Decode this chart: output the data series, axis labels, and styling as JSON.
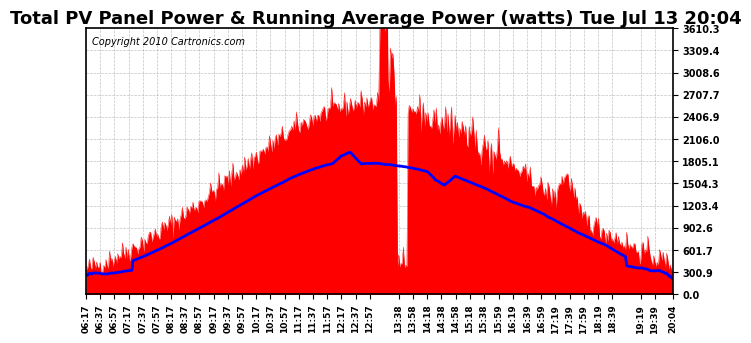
{
  "title": "Total PV Panel Power & Running Average Power (watts) Tue Jul 13 20:04",
  "copyright": "Copyright 2010 Cartronics.com",
  "y_ticks": [
    0.0,
    300.9,
    601.7,
    902.6,
    1203.4,
    1504.3,
    1805.1,
    2106.0,
    2406.9,
    2707.7,
    3008.6,
    3309.4,
    3610.3
  ],
  "y_max": 3610.3,
  "x_labels": [
    "06:17",
    "06:37",
    "06:57",
    "07:17",
    "07:37",
    "07:57",
    "08:17",
    "08:37",
    "08:57",
    "09:17",
    "09:37",
    "09:57",
    "10:17",
    "10:37",
    "10:57",
    "11:17",
    "11:37",
    "11:57",
    "12:17",
    "12:37",
    "12:57",
    "13:38",
    "13:58",
    "14:18",
    "14:38",
    "14:58",
    "15:18",
    "15:38",
    "15:59",
    "16:19",
    "16:39",
    "16:59",
    "17:19",
    "17:39",
    "17:59",
    "18:19",
    "18:39",
    "19:19",
    "19:39",
    "20:04"
  ],
  "bg_color": "#ffffff",
  "plot_bg": "#ffffff",
  "grid_color": "#aaaaaa",
  "fill_color": "#ff0000",
  "line_color": "#0000ff",
  "title_fontsize": 13,
  "copyright_fontsize": 7
}
